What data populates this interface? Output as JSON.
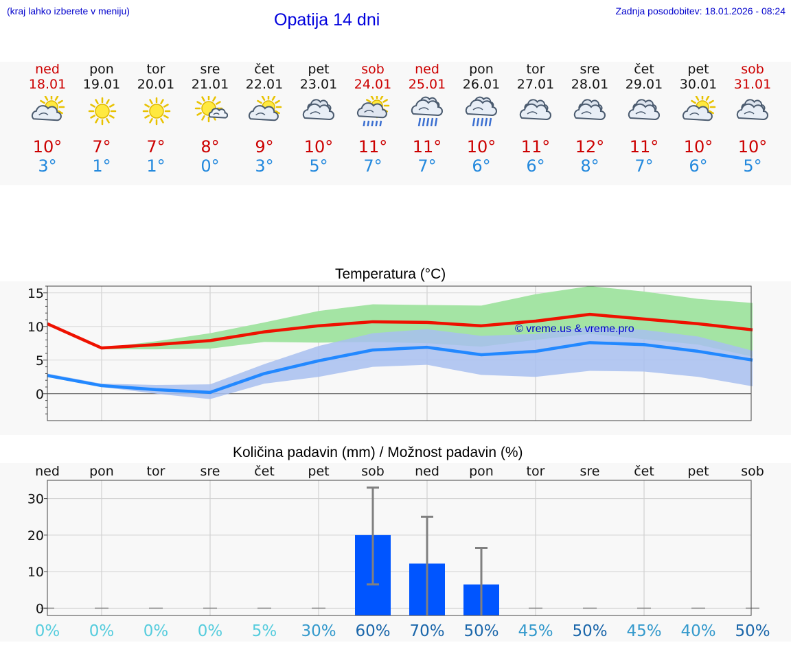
{
  "header": {
    "left_note": "(kraj lahko izberete v meniju)",
    "title": "Opatija 14 dni",
    "updated": "Zadnja posodobitev: 18.01.2026 - 08:24"
  },
  "colors": {
    "weekend": "#cc0000",
    "max_line": "#ee1100",
    "min_line": "#2288ff",
    "max_band": "#a4e4a4",
    "min_band": "#a8c0f0",
    "overlap_band": "#7ec8ac",
    "bar": "#0055ff",
    "error_bar": "#808080"
  },
  "days": [
    {
      "name": "ned",
      "date": "18.01",
      "weekend": true,
      "icon": "partly-cloudy-icon",
      "tmax": "10°",
      "tmin": "3°"
    },
    {
      "name": "pon",
      "date": "19.01",
      "weekend": false,
      "icon": "sun-icon",
      "tmax": "7°",
      "tmin": "1°"
    },
    {
      "name": "tor",
      "date": "20.01",
      "weekend": false,
      "icon": "sun-icon",
      "tmax": "7°",
      "tmin": "1°"
    },
    {
      "name": "sre",
      "date": "21.01",
      "weekend": false,
      "icon": "sun-small-cloud-icon",
      "tmax": "8°",
      "tmin": "0°"
    },
    {
      "name": "čet",
      "date": "22.01",
      "weekend": false,
      "icon": "partly-cloudy-icon",
      "tmax": "9°",
      "tmin": "3°"
    },
    {
      "name": "pet",
      "date": "23.01",
      "weekend": false,
      "icon": "cloudy-icon",
      "tmax": "10°",
      "tmin": "5°"
    },
    {
      "name": "sob",
      "date": "24.01",
      "weekend": true,
      "icon": "sun-rain-icon",
      "tmax": "11°",
      "tmin": "7°"
    },
    {
      "name": "ned",
      "date": "25.01",
      "weekend": true,
      "icon": "cloud-rain-icon",
      "tmax": "11°",
      "tmin": "7°"
    },
    {
      "name": "pon",
      "date": "26.01",
      "weekend": false,
      "icon": "cloud-rain-icon",
      "tmax": "10°",
      "tmin": "6°"
    },
    {
      "name": "tor",
      "date": "27.01",
      "weekend": false,
      "icon": "cloudy-icon",
      "tmax": "11°",
      "tmin": "6°"
    },
    {
      "name": "sre",
      "date": "28.01",
      "weekend": false,
      "icon": "cloudy-icon",
      "tmax": "12°",
      "tmin": "8°"
    },
    {
      "name": "čet",
      "date": "29.01",
      "weekend": false,
      "icon": "cloudy-icon",
      "tmax": "11°",
      "tmin": "7°"
    },
    {
      "name": "pet",
      "date": "30.01",
      "weekend": false,
      "icon": "partly-cloudy-icon",
      "tmax": "10°",
      "tmin": "6°"
    },
    {
      "name": "sob",
      "date": "31.01",
      "weekend": true,
      "icon": "cloudy-icon",
      "tmax": "10°",
      "tmin": "5°"
    }
  ],
  "chart_data": [
    {
      "type": "line",
      "title": "Temperatura (°C)",
      "watermark": "© vreme.us & vreme.pro",
      "x_count": 14,
      "ylim": [
        -4,
        16
      ],
      "yticks": [
        0,
        5,
        10,
        15
      ],
      "grid": true,
      "series": [
        {
          "name": "max",
          "values": [
            10.4,
            6.8,
            7.3,
            7.9,
            9.2,
            10.1,
            10.7,
            10.6,
            10.1,
            10.8,
            11.8,
            11.1,
            10.4,
            9.5
          ]
        },
        {
          "name": "min",
          "values": [
            2.7,
            1.2,
            0.6,
            0.2,
            3.0,
            4.9,
            6.5,
            6.9,
            5.8,
            6.3,
            7.6,
            7.3,
            6.3,
            5.0
          ]
        }
      ],
      "max_band": {
        "upper": [
          null,
          6.8,
          7.8,
          9.0,
          10.6,
          12.3,
          13.3,
          13.2,
          13.1,
          14.8,
          16.0,
          15.2,
          14.1,
          13.5
        ],
        "lower": [
          null,
          6.6,
          6.6,
          6.7,
          7.7,
          7.6,
          7.7,
          7.5,
          7.0,
          8.0,
          8.9,
          8.1,
          7.3,
          5.5
        ]
      },
      "min_band": {
        "upper": [
          3.0,
          1.5,
          1.3,
          1.4,
          4.4,
          7.1,
          9.0,
          9.6,
          8.6,
          8.9,
          9.9,
          9.5,
          8.5,
          6.4
        ],
        "lower": [
          2.6,
          1.0,
          0.0,
          -0.8,
          1.5,
          2.5,
          4.0,
          4.3,
          2.8,
          2.5,
          3.4,
          3.3,
          2.5,
          1.1
        ]
      }
    },
    {
      "type": "bar",
      "title": "Količina padavin (mm) / Možnost padavin (%)",
      "categories": [
        "ned",
        "pon",
        "tor",
        "sre",
        "čet",
        "pet",
        "sob",
        "ned",
        "pon",
        "tor",
        "sre",
        "čet",
        "pet",
        "sob"
      ],
      "ylim": [
        -2,
        35
      ],
      "yticks": [
        0,
        10,
        20,
        30
      ],
      "grid": true,
      "values": [
        0,
        0,
        0,
        0,
        0,
        0,
        20,
        12.2,
        6.5,
        0,
        0,
        0,
        0,
        0
      ],
      "error_high": [
        0,
        0,
        0,
        0,
        0,
        0,
        33,
        25,
        16.5,
        0,
        0,
        0,
        0,
        0
      ],
      "error_low": [
        0,
        0,
        0,
        0,
        0,
        0,
        6.5,
        0,
        0,
        0,
        0,
        0,
        0,
        0
      ],
      "probability": [
        "0%",
        "0%",
        "0%",
        "0%",
        "5%",
        "30%",
        "60%",
        "70%",
        "50%",
        "45%",
        "50%",
        "45%",
        "40%",
        "50%"
      ]
    }
  ]
}
